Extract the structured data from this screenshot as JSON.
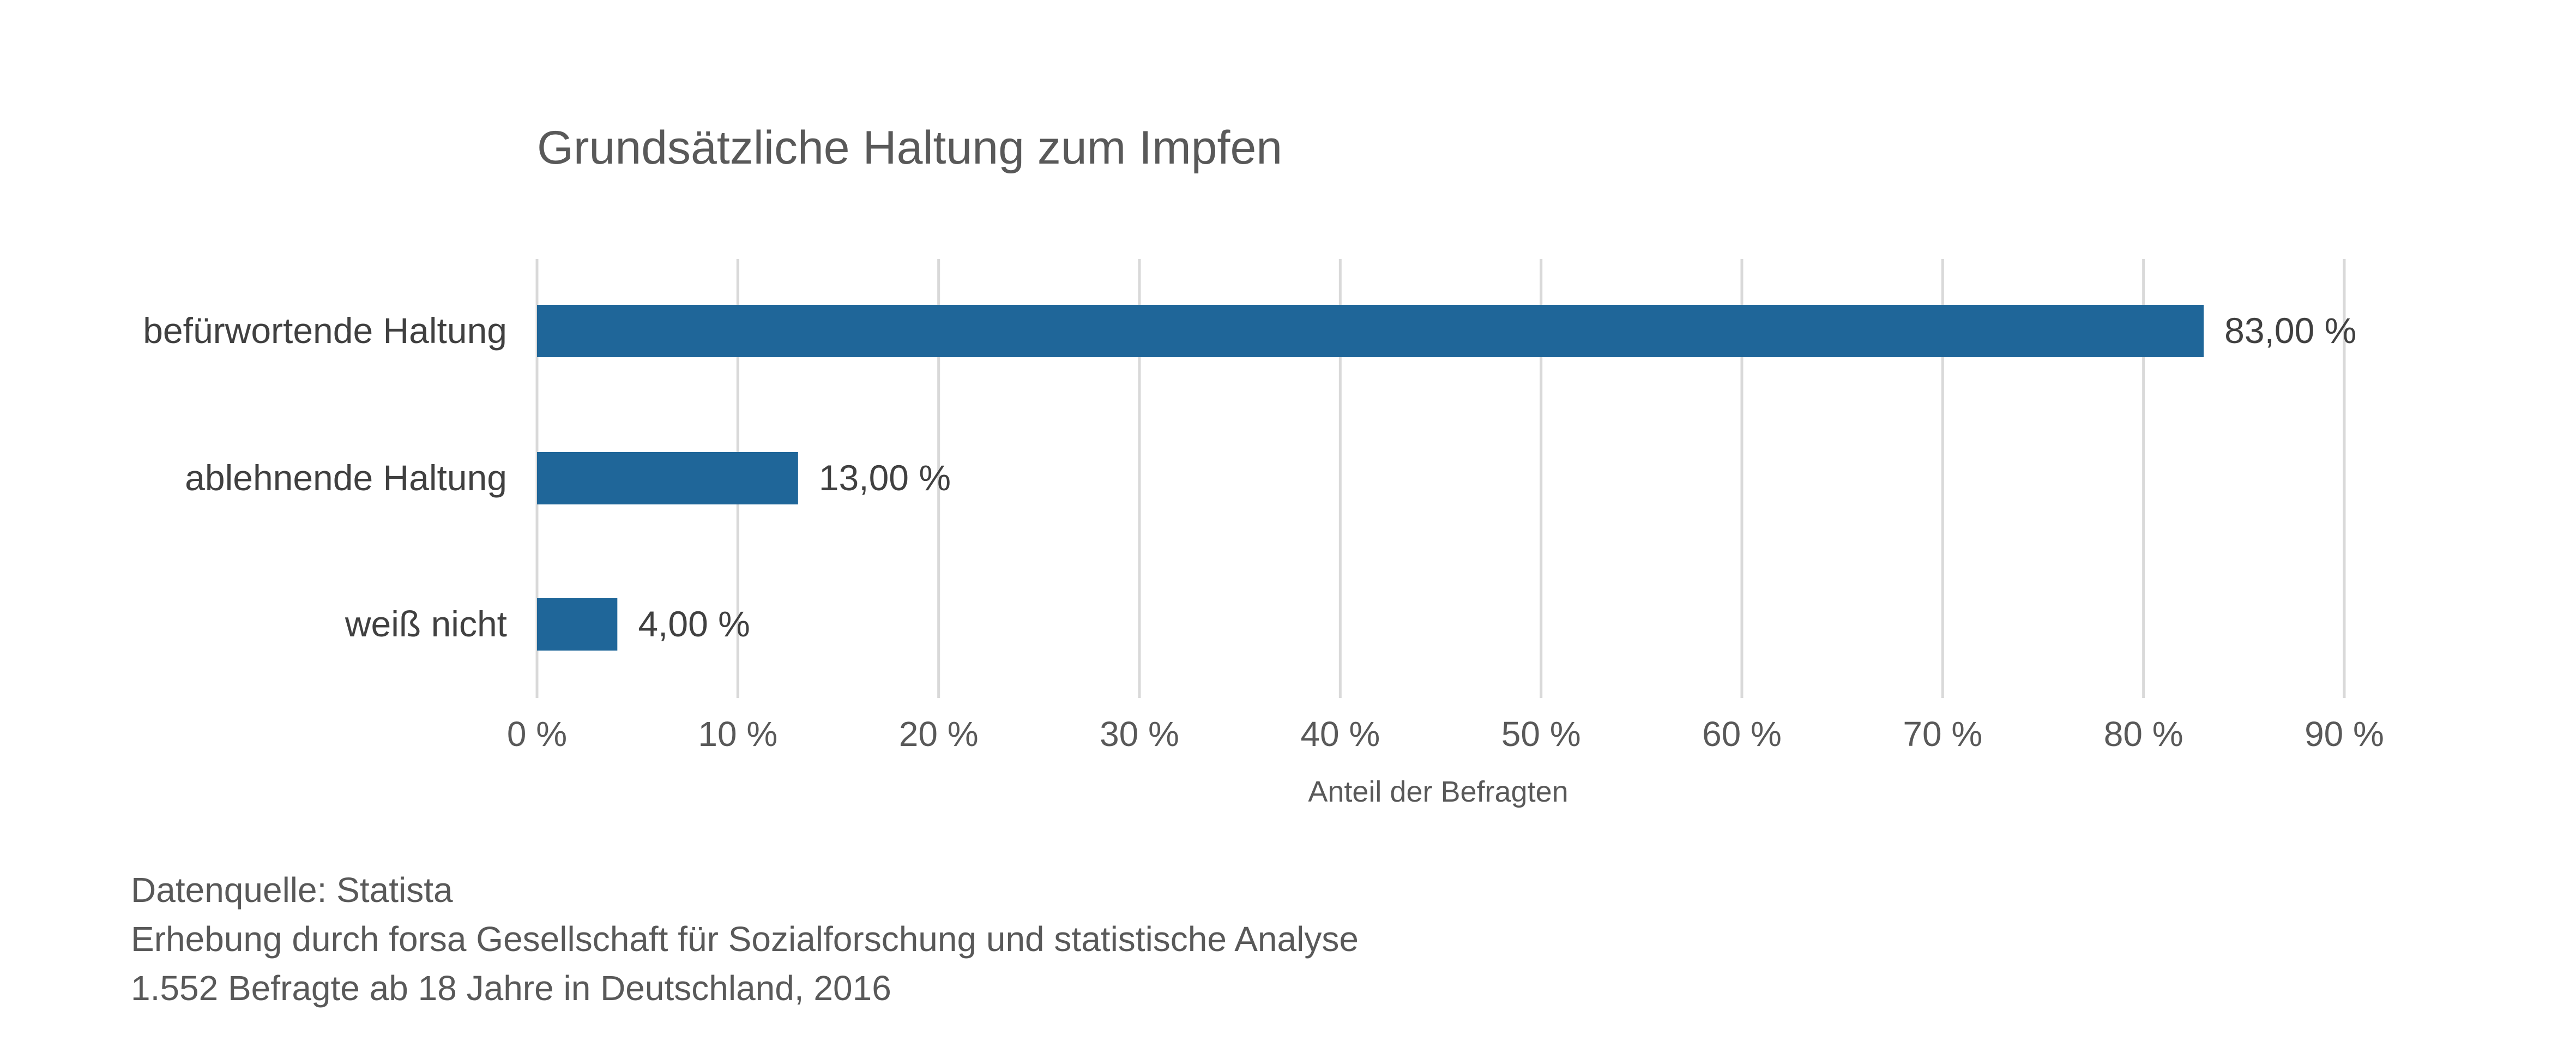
{
  "chart_data": {
    "type": "bar",
    "orientation": "horizontal",
    "title": "Grundsätzliche Haltung zum Impfen",
    "xlabel": "Anteil der Befragten",
    "ylabel": "",
    "categories": [
      "befürwortende Haltung",
      "ablehnende Haltung",
      "weiß nicht"
    ],
    "values": [
      83,
      13,
      4
    ],
    "value_labels": [
      "83,00 %",
      "13,00 %",
      "4,00 %"
    ],
    "xlim": [
      0,
      90
    ],
    "x_ticks": [
      0,
      10,
      20,
      30,
      40,
      50,
      60,
      70,
      80,
      90
    ],
    "x_tick_labels": [
      "0 %",
      "10 %",
      "20 %",
      "30 %",
      "40 %",
      "50 %",
      "60 %",
      "70 %",
      "80 %",
      "90 %"
    ],
    "grid": "vertical",
    "legend": "none",
    "bar_color": "#1f6699",
    "grid_color": "#d9d9d9"
  },
  "source": {
    "lines": [
      "Datenquelle: Statista",
      "Erhebung durch forsa Gesellschaft für Sozialforschung und statistische Analyse",
      "1.552 Befragte ab 18 Jahre in Deutschland, 2016"
    ]
  }
}
